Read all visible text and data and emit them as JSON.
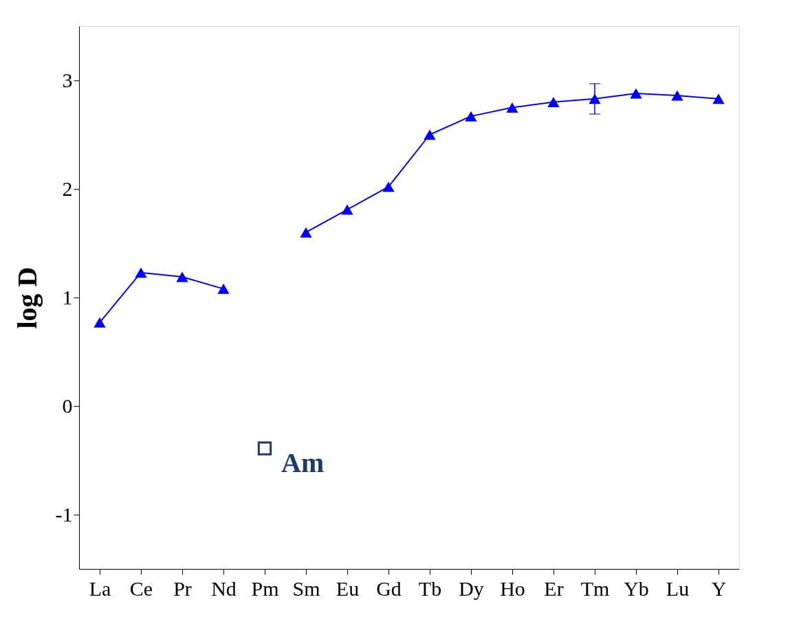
{
  "chart_data": {
    "type": "line",
    "ylabel": "log D",
    "categories": [
      "La",
      "Ce",
      "Pr",
      "Nd",
      "Pm",
      "Sm",
      "Eu",
      "Gd",
      "Tb",
      "Dy",
      "Ho",
      "Er",
      "Tm",
      "Yb",
      "Lu",
      "Y"
    ],
    "series": [
      {
        "color": "#0000ff",
        "marker": "triangle",
        "values": [
          0.77,
          1.23,
          1.19,
          1.08,
          null,
          1.6,
          1.81,
          2.02,
          2.5,
          2.67,
          2.75,
          2.8,
          2.83,
          2.88,
          2.86,
          2.83
        ],
        "errors": [
          null,
          null,
          null,
          null,
          null,
          null,
          null,
          null,
          null,
          null,
          null,
          null,
          0.14,
          null,
          null,
          null
        ]
      },
      {
        "type": "scatter",
        "name": "Am",
        "color": "#1a3a6e",
        "marker": "square",
        "x": [
          "Pm"
        ],
        "values": [
          -0.39
        ]
      }
    ],
    "ylim": [
      -1.5,
      3.5
    ],
    "yticks": [
      -1,
      0,
      1,
      2,
      3
    ]
  }
}
